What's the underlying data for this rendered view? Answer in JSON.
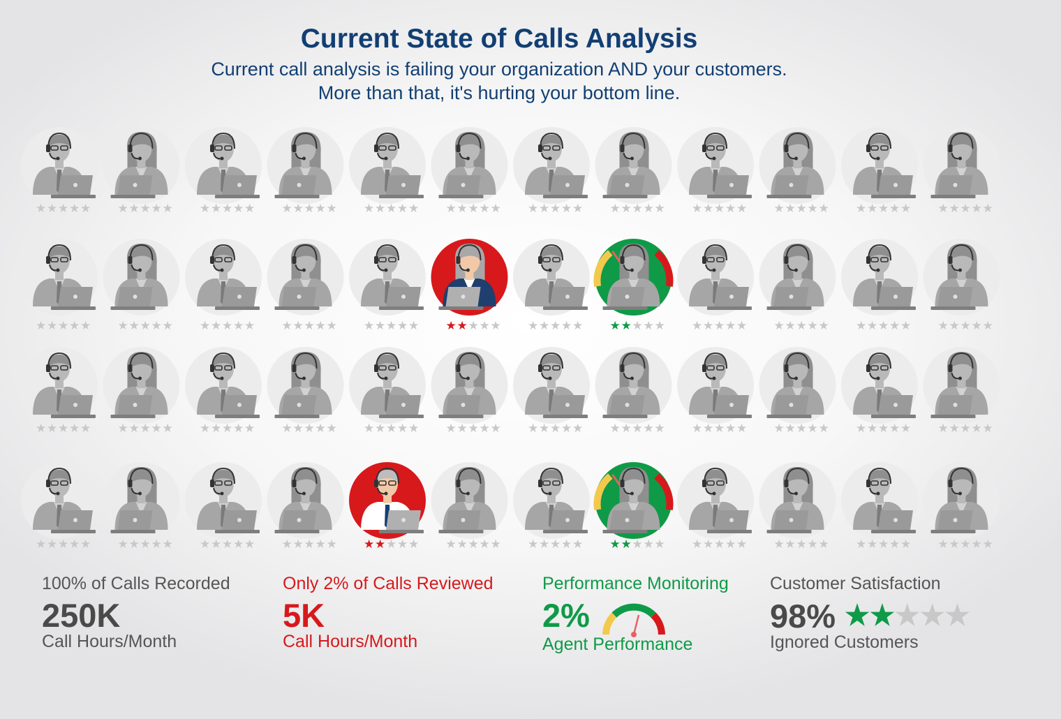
{
  "header": {
    "title": "Current State of Calls Analysis",
    "subtitle_line1": "Current call analysis is failing your organization AND your customers.",
    "subtitle_line2": "More than that, it's hurting your bottom line."
  },
  "agents_grid": {
    "rows": 4,
    "columns": 12,
    "stars_max": 5,
    "colors": {
      "neutral": "#c8c8c8",
      "reviewed": "#d7191c",
      "monitored": "#0f9a47"
    },
    "highlighted": [
      {
        "row": 2,
        "col": 6,
        "type": "reviewed",
        "stars": 2
      },
      {
        "row": 2,
        "col": 8,
        "type": "monitored",
        "stars": 2
      },
      {
        "row": 4,
        "col": 5,
        "type": "reviewed",
        "stars": 2
      },
      {
        "row": 4,
        "col": 8,
        "type": "monitored",
        "stars": 2
      }
    ]
  },
  "metrics": {
    "recorded": {
      "label": "100% of Calls Recorded",
      "value": "250K",
      "sub": "Call Hours/Month"
    },
    "reviewed": {
      "label": "Only 2% of Calls Reviewed",
      "value": "5K",
      "sub": "Call Hours/Month"
    },
    "performance": {
      "label": "Performance Monitoring",
      "value": "2%",
      "sub": "Agent Performance",
      "icon": "gauge-icon"
    },
    "satisfaction": {
      "label": "Customer Satisfaction",
      "value": "98%",
      "sub": "Ignored Customers",
      "stars_filled": 2,
      "stars_max": 5,
      "icon": "star-rating-icon"
    }
  }
}
